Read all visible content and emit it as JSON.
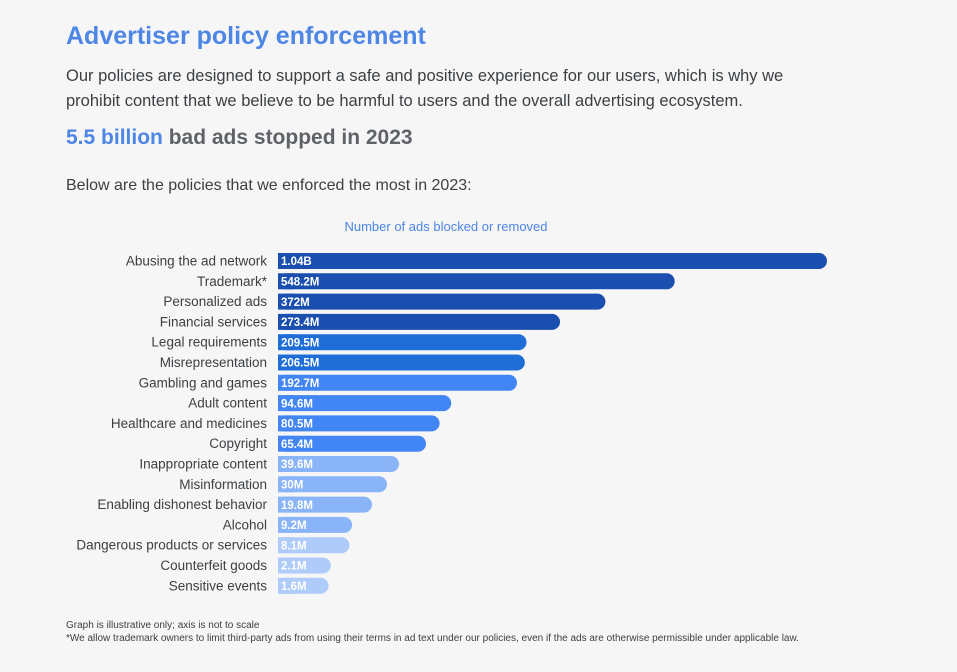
{
  "page": {
    "title": "Advertiser policy enforcement",
    "description": "Our policies are designed to support a safe and positive experience for our users, which is why we prohibit content that we believe to be harmful to users and the overall advertising ecosystem.",
    "stat_highlight": "5.5 billion",
    "stat_rest": " bad ads stopped in 2023",
    "intro": "Below are the policies that we enforced the most in 2023:",
    "note_1": "Graph is illustrative only; axis is not to scale",
    "note_2": "*We allow trademark owners to limit third-party ads from using their terms in ad text under our policies, even if the ads are otherwise permissible under applicable law."
  },
  "colors": {
    "accent": "#4d86e4",
    "bar_dark": "#1a4fb0",
    "bar_mid": "#1f6ed8",
    "bar_blue": "#4285f4",
    "bar_light": "#8ab4f8",
    "bar_pale": "#aecbfa"
  },
  "chart_data": {
    "type": "bar",
    "orientation": "horizontal",
    "title": "Number of ads blocked or removed",
    "scale_note": "axis is not to scale",
    "categories": [
      "Abusing the ad network",
      "Trademark*",
      "Personalized ads",
      "Financial services",
      "Legal requirements",
      "Misrepresentation",
      "Gambling and games",
      "Adult content",
      "Healthcare and medicines",
      "Copyright",
      "Inappropriate content",
      "Misinformation",
      "Enabling dishonest behavior",
      "Alcohol",
      "Dangerous products or services",
      "Counterfeit goods",
      "Sensitive events"
    ],
    "labels": [
      "1.04B",
      "548.2M",
      "372M",
      "273.4M",
      "209.5M",
      "206.5M",
      "192.7M",
      "94.6M",
      "80.5M",
      "65.4M",
      "39.6M",
      "30M",
      "19.8M",
      "9.2M",
      "8.1M",
      "2.1M",
      "1.6M"
    ],
    "values": [
      1040,
      548.2,
      372,
      273.4,
      209.5,
      206.5,
      192.7,
      94.6,
      80.5,
      65.4,
      39.6,
      30,
      19.8,
      9.2,
      8.1,
      2.1,
      1.6
    ],
    "value_unit": "millions",
    "bar_color_groups": [
      "dark",
      "dark",
      "dark",
      "dark",
      "mid",
      "mid",
      "blue",
      "blue",
      "blue",
      "blue",
      "light",
      "light",
      "light",
      "light",
      "pale",
      "pale",
      "pale"
    ]
  }
}
